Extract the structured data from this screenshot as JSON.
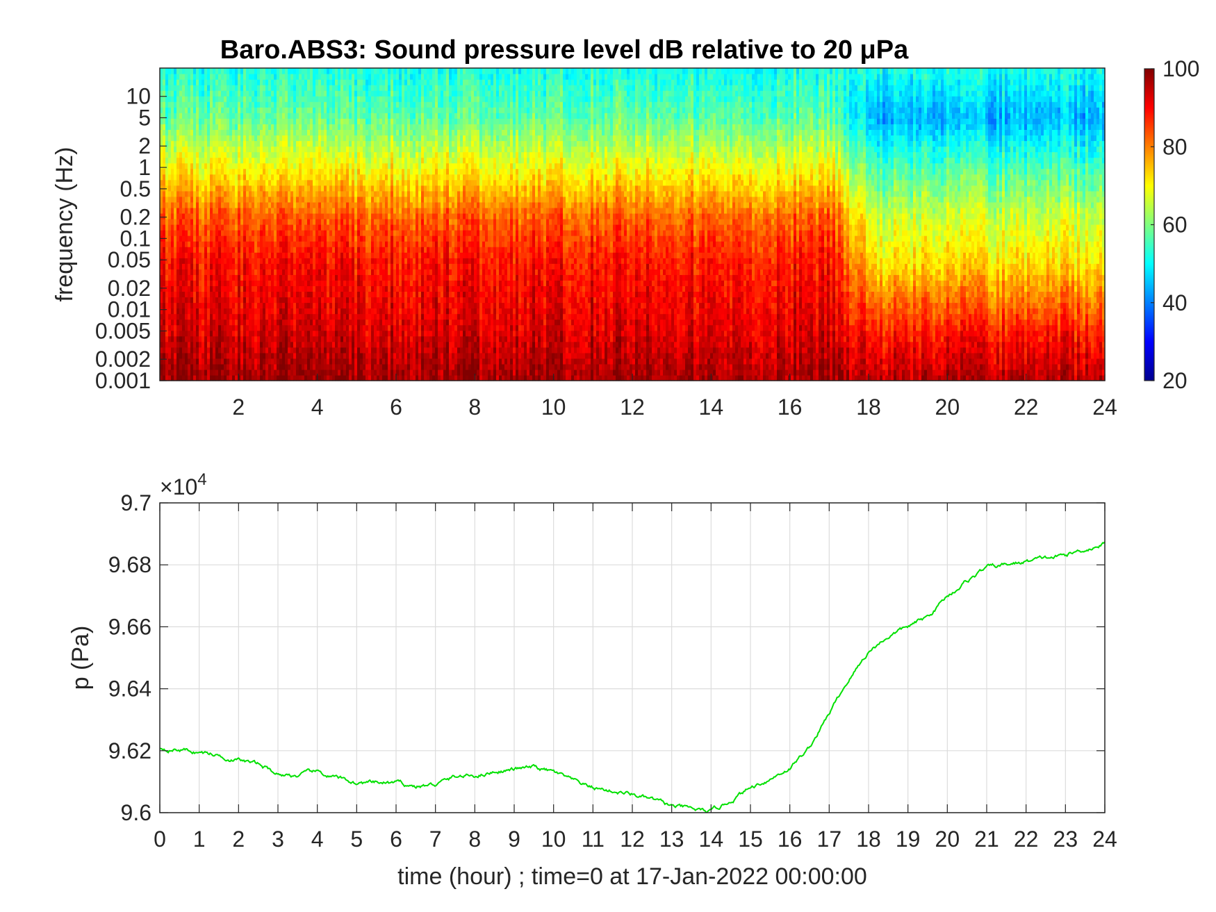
{
  "chart_data": [
    {
      "type": "heatmap",
      "title": "Baro.ABS3: Sound pressure level dB relative to 20 μPa",
      "xlabel": "",
      "ylabel": "frequency (Hz)",
      "xlim": [
        0,
        24
      ],
      "x_ticks": [
        "2",
        "4",
        "6",
        "8",
        "10",
        "12",
        "14",
        "16",
        "18",
        "20",
        "22",
        "24"
      ],
      "y_scale": "log",
      "ylim": [
        0.001,
        25
      ],
      "y_ticks": [
        "10",
        "5",
        "2",
        "1",
        "0.5",
        "0.2",
        "0.1",
        "0.05",
        "0.02",
        "0.01",
        "0.005",
        "0.002",
        "0.001"
      ],
      "y_tick_values": [
        10,
        5,
        2,
        1,
        0.5,
        0.2,
        0.1,
        0.05,
        0.02,
        0.01,
        0.005,
        0.002,
        0.001
      ],
      "colormap": "jet",
      "colorbar_range": [
        20,
        100
      ],
      "colorbar_ticks": [
        "100",
        "80",
        "60",
        "40",
        "20"
      ],
      "colorbar_tick_values": [
        100,
        80,
        60,
        40,
        20
      ],
      "level_profile": {
        "freq": [
          0.001,
          0.005,
          0.05,
          0.2,
          1,
          5,
          25
        ],
        "spl_db_active": [
          98,
          93,
          89,
          83,
          70,
          58,
          52
        ],
        "spl_db_quiet": [
          96,
          88,
          72,
          66,
          56,
          44,
          52
        ]
      },
      "quiet_period_hours": [
        17,
        24
      ],
      "grid": false,
      "legend": "colorbar-right"
    },
    {
      "type": "line",
      "title": "",
      "xlabel": "time (hour) ; time=0 at 17-Jan-2022 00:00:00",
      "ylabel": "p (Pa)",
      "xlim": [
        0,
        24
      ],
      "ylim": [
        96000,
        97000
      ],
      "x_ticks": [
        "0",
        "1",
        "2",
        "3",
        "4",
        "5",
        "6",
        "7",
        "8",
        "9",
        "10",
        "11",
        "12",
        "13",
        "14",
        "15",
        "16",
        "17",
        "18",
        "19",
        "20",
        "21",
        "22",
        "23",
        "24"
      ],
      "y_ticks": [
        "9.7",
        "9.68",
        "9.66",
        "9.64",
        "9.62",
        "9.6"
      ],
      "y_tick_values": [
        97000,
        96800,
        96600,
        96400,
        96200,
        96000
      ],
      "y_exponent_label": "×10",
      "y_exponent_power": "4",
      "grid": true,
      "color": "#00e000",
      "x": [
        0,
        0.5,
        1,
        1.5,
        2,
        2.5,
        3,
        3.5,
        4,
        4.5,
        5,
        5.5,
        6,
        6.5,
        7,
        7.5,
        8,
        8.5,
        9,
        9.5,
        10,
        10.5,
        11,
        11.5,
        12,
        12.5,
        13,
        13.5,
        14,
        14.5,
        15,
        15.5,
        16,
        16.5,
        17,
        17.5,
        18,
        18.5,
        19,
        19.5,
        20,
        20.5,
        21,
        21.5,
        22,
        22.5,
        23,
        23.5,
        24
      ],
      "y": [
        96210,
        96205,
        96195,
        96185,
        96170,
        96155,
        96125,
        96120,
        96130,
        96110,
        96095,
        96095,
        96095,
        96085,
        96090,
        96115,
        96120,
        96135,
        96140,
        96145,
        96130,
        96100,
        96080,
        96070,
        96060,
        96040,
        96020,
        96010,
        96000,
        96040,
        96080,
        96110,
        96145,
        96210,
        96320,
        96430,
        96520,
        96570,
        96600,
        96630,
        96700,
        96750,
        96790,
        96800,
        96810,
        96820,
        96830,
        96850,
        96870
      ]
    }
  ]
}
